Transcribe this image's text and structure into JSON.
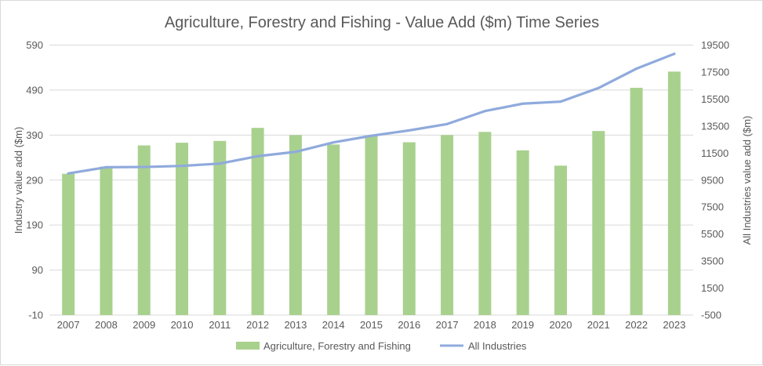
{
  "chart_data": {
    "type": "bar+line",
    "title": "Agriculture, Forestry and Fishing - Value Add ($m) Time Series",
    "categories": [
      "2007",
      "2008",
      "2009",
      "2010",
      "2011",
      "2012",
      "2013",
      "2014",
      "2015",
      "2016",
      "2017",
      "2018",
      "2019",
      "2020",
      "2021",
      "2022",
      "2023"
    ],
    "ylabel": "Industry value add ($m)",
    "y2label": "All Industries value add ($m)",
    "ylim": [
      -10,
      590
    ],
    "yticks": [
      "-10",
      "90",
      "190",
      "290",
      "390",
      "490",
      "590"
    ],
    "y2lim": [
      -500,
      19500
    ],
    "y2ticks": [
      "-500",
      "1500",
      "3500",
      "5500",
      "7500",
      "9500",
      "11500",
      "13500",
      "15500",
      "17500",
      "19500"
    ],
    "grid": true,
    "legend_position": "bottom",
    "series": [
      {
        "name": "Agriculture, Forestry and Fishing",
        "type": "bar",
        "axis": "left",
        "color": "#a9d18e",
        "values": [
          304,
          320,
          367,
          373,
          377,
          406,
          390,
          369,
          389,
          374,
          390,
          397,
          356,
          322,
          399,
          495,
          531
        ]
      },
      {
        "name": "All Industries",
        "type": "line",
        "axis": "right",
        "color": "#8faadc",
        "values": [
          9990,
          10450,
          10470,
          10550,
          10720,
          11270,
          11590,
          12290,
          12780,
          13180,
          13650,
          14610,
          15160,
          15310,
          16320,
          17750,
          18850
        ]
      }
    ]
  }
}
